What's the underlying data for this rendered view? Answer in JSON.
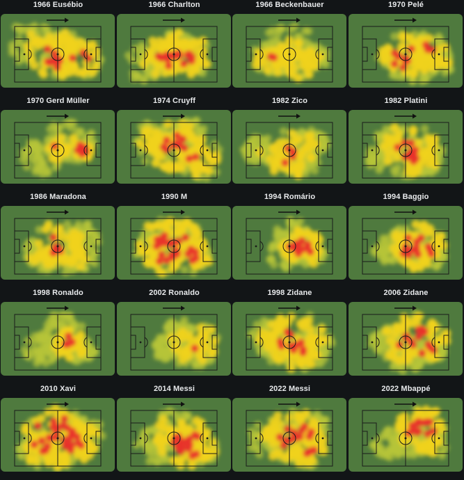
{
  "app": {
    "title": "World Cup icons — player heatmaps"
  },
  "colors": {
    "background": "#121517",
    "pitch": "#4f7a3e",
    "lines": "#1a1a1a",
    "heat_low": "#b7c437",
    "heat_mid": "#f0d21e",
    "heat_high": "#e8322a"
  },
  "icons": {
    "direction": "right-arrow-icon"
  },
  "players": [
    {
      "title": "1966 Eusébio",
      "heat": [
        [
          -0.2,
          0.15,
          2.2,
          0.9
        ],
        [
          0.3,
          -0.5,
          1.2,
          0.7
        ],
        [
          1.2,
          0.2,
          1.8,
          0.85
        ],
        [
          -1.2,
          -0.5,
          2.4,
          0.55
        ]
      ]
    },
    {
      "title": "1966 Charlton",
      "heat": [
        [
          -0.4,
          0.1,
          2.0,
          0.85
        ],
        [
          0.7,
          0.1,
          2.2,
          0.85
        ],
        [
          0.1,
          -0.4,
          1.5,
          0.7
        ],
        [
          -1.3,
          0.4,
          2.0,
          0.45
        ]
      ]
    },
    {
      "title": "1966 Beckenbauer",
      "heat": [
        [
          -0.8,
          0.15,
          1.8,
          0.7
        ],
        [
          0.4,
          0.3,
          1.8,
          0.75
        ],
        [
          0.0,
          -0.3,
          2.4,
          0.55
        ],
        [
          1.2,
          0.2,
          1.3,
          0.5
        ]
      ]
    },
    {
      "title": "1970 Pelé",
      "heat": [
        [
          0.0,
          0.05,
          2.4,
          0.9
        ],
        [
          1.0,
          -0.15,
          1.9,
          0.8
        ],
        [
          0.6,
          0.55,
          1.6,
          0.6
        ],
        [
          1.6,
          0.35,
          1.3,
          0.6
        ]
      ]
    },
    {
      "title": "1970 Gerd Müller",
      "heat": [
        [
          0.0,
          0.0,
          1.0,
          0.85
        ],
        [
          1.25,
          0.0,
          1.0,
          0.9
        ],
        [
          0.6,
          -0.4,
          2.2,
          0.45
        ],
        [
          -0.8,
          0.3,
          1.8,
          0.35
        ]
      ]
    },
    {
      "title": "1974 Cruyff",
      "heat": [
        [
          0.1,
          -0.1,
          2.6,
          0.95
        ],
        [
          1.2,
          0.4,
          2.2,
          0.8
        ],
        [
          -0.9,
          -0.3,
          2.2,
          0.6
        ],
        [
          0.8,
          -0.7,
          1.5,
          0.55
        ]
      ]
    },
    {
      "title": "1982 Zico",
      "heat": [
        [
          0.0,
          0.15,
          2.4,
          0.8
        ],
        [
          1.0,
          -0.3,
          1.5,
          0.6
        ],
        [
          -1.5,
          0.0,
          1.5,
          0.45
        ],
        [
          0.6,
          0.6,
          1.5,
          0.5
        ]
      ]
    },
    {
      "title": "1982 Platini",
      "heat": [
        [
          0.2,
          0.0,
          2.8,
          0.9
        ],
        [
          -0.5,
          -0.3,
          1.8,
          0.55
        ],
        [
          1.0,
          0.3,
          1.7,
          0.6
        ],
        [
          -1.2,
          0.3,
          1.4,
          0.4
        ]
      ]
    },
    {
      "title": "1986 Maradona",
      "heat": [
        [
          0.0,
          -0.05,
          2.4,
          0.85
        ],
        [
          -0.7,
          0.3,
          1.8,
          0.6
        ],
        [
          0.9,
          0.5,
          1.8,
          0.6
        ],
        [
          1.2,
          -0.4,
          1.5,
          0.5
        ]
      ]
    },
    {
      "title": "1990 M",
      "heat": [
        [
          -0.1,
          0.0,
          3.0,
          1.0
        ],
        [
          0.8,
          0.4,
          1.8,
          0.85
        ],
        [
          -0.9,
          0.1,
          1.8,
          0.6
        ],
        [
          0.3,
          -0.6,
          1.6,
          0.5
        ]
      ]
    },
    {
      "title": "1994 Romário",
      "heat": [
        [
          0.6,
          0.0,
          1.8,
          0.95
        ],
        [
          1.0,
          0.3,
          1.3,
          0.7
        ],
        [
          -0.2,
          0.3,
          1.6,
          0.35
        ],
        [
          0.2,
          -0.5,
          1.6,
          0.4
        ]
      ]
    },
    {
      "title": "1994 Baggio",
      "heat": [
        [
          0.6,
          0.0,
          2.4,
          0.95
        ],
        [
          0.1,
          -0.2,
          1.6,
          0.6
        ],
        [
          1.1,
          0.4,
          1.5,
          0.6
        ],
        [
          -0.8,
          0.1,
          1.4,
          0.35
        ]
      ]
    },
    {
      "title": "1998 Ronaldo",
      "heat": [
        [
          0.6,
          0.05,
          1.6,
          0.85
        ],
        [
          0.2,
          -0.4,
          2.0,
          0.45
        ],
        [
          -0.8,
          0.3,
          1.5,
          0.3
        ],
        [
          1.2,
          0.4,
          1.2,
          0.4
        ]
      ]
    },
    {
      "title": "2002 Ronaldo",
      "heat": [
        [
          0.9,
          0.1,
          2.4,
          0.75
        ],
        [
          0.3,
          -0.4,
          1.4,
          0.4
        ],
        [
          -0.4,
          0.3,
          1.3,
          0.25
        ],
        [
          1.3,
          0.5,
          1.3,
          0.45
        ]
      ]
    },
    {
      "title": "1998 Zidane",
      "heat": [
        [
          0.2,
          -0.1,
          3.0,
          0.9
        ],
        [
          0.8,
          0.4,
          2.0,
          0.7
        ],
        [
          -0.8,
          -0.2,
          2.0,
          0.55
        ],
        [
          1.3,
          0.0,
          1.4,
          0.5
        ]
      ]
    },
    {
      "title": "2006 Zidane",
      "heat": [
        [
          0.5,
          -0.1,
          2.8,
          0.95
        ],
        [
          0.0,
          0.5,
          1.8,
          0.5
        ],
        [
          1.2,
          0.3,
          1.4,
          0.55
        ],
        [
          -0.8,
          0.0,
          1.6,
          0.35
        ]
      ]
    },
    {
      "title": "2010 Xavi",
      "heat": [
        [
          -0.1,
          0.0,
          3.2,
          1.0
        ],
        [
          0.6,
          0.2,
          2.4,
          0.85
        ],
        [
          -0.8,
          0.4,
          2.0,
          0.7
        ],
        [
          1.2,
          -0.2,
          1.8,
          0.6
        ]
      ]
    },
    {
      "title": "2014 Messi",
      "heat": [
        [
          0.6,
          0.2,
          2.6,
          0.95
        ],
        [
          0.0,
          -0.3,
          2.2,
          0.6
        ],
        [
          -0.9,
          0.3,
          1.8,
          0.4
        ],
        [
          1.3,
          0.5,
          1.5,
          0.7
        ]
      ]
    },
    {
      "title": "2022 Messi",
      "heat": [
        [
          0.2,
          -0.05,
          2.8,
          0.95
        ],
        [
          0.9,
          0.5,
          1.8,
          0.8
        ],
        [
          -0.9,
          0.0,
          2.0,
          0.5
        ],
        [
          1.0,
          -0.5,
          1.6,
          0.55
        ]
      ]
    },
    {
      "title": "2022 Mbappé",
      "heat": [
        [
          0.8,
          -0.45,
          2.2,
          0.95
        ],
        [
          0.2,
          0.15,
          1.8,
          0.55
        ],
        [
          1.3,
          0.3,
          1.4,
          0.6
        ],
        [
          -0.8,
          0.2,
          1.5,
          0.3
        ]
      ]
    }
  ]
}
